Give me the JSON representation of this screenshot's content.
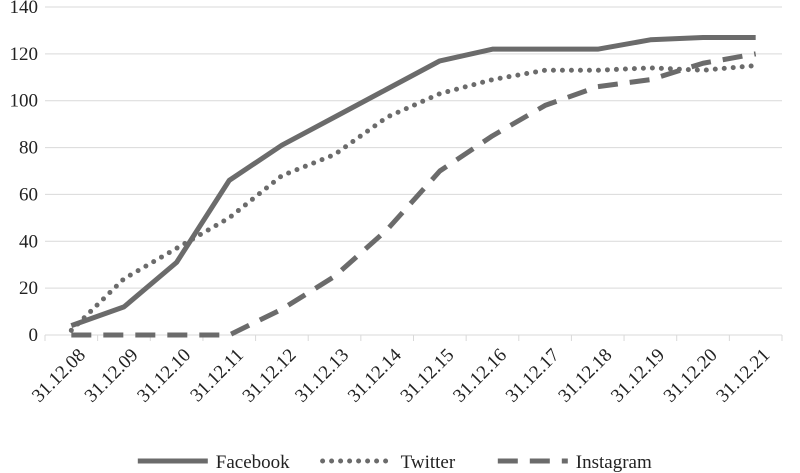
{
  "chart_data": {
    "type": "line",
    "title": "",
    "xlabel": "",
    "ylabel": "",
    "categories": [
      "31.12.08",
      "31.12.09",
      "31.12.10",
      "31.12.11",
      "31.12.12",
      "31.12.13",
      "31.12.14",
      "31.12.15",
      "31.12.16",
      "31.12.17",
      "31.12.18",
      "31.12.19",
      "31.12.20",
      "31.12.21"
    ],
    "ylim": [
      0,
      140
    ],
    "yticks": [
      "0",
      "20",
      "40",
      "60",
      "80",
      "100",
      "120",
      "140"
    ],
    "grid": true,
    "legend_position": "bottom",
    "series": [
      {
        "name": "Facebook",
        "style": "solid",
        "color": "#6b6b6b",
        "values": [
          4,
          12,
          31,
          66,
          81,
          93,
          105,
          117,
          122,
          122,
          122,
          126,
          127,
          127
        ]
      },
      {
        "name": "Twitter",
        "style": "dotted",
        "color": "#6b6b6b",
        "values": [
          2,
          24,
          37,
          50,
          68,
          77,
          93,
          103,
          109,
          113,
          113,
          114,
          113,
          115
        ]
      },
      {
        "name": "Instagram",
        "style": "dashed",
        "color": "#6b6b6b",
        "values": [
          0,
          0,
          0,
          0,
          11,
          25,
          45,
          70,
          85,
          98,
          106,
          109,
          116,
          120
        ]
      }
    ]
  }
}
